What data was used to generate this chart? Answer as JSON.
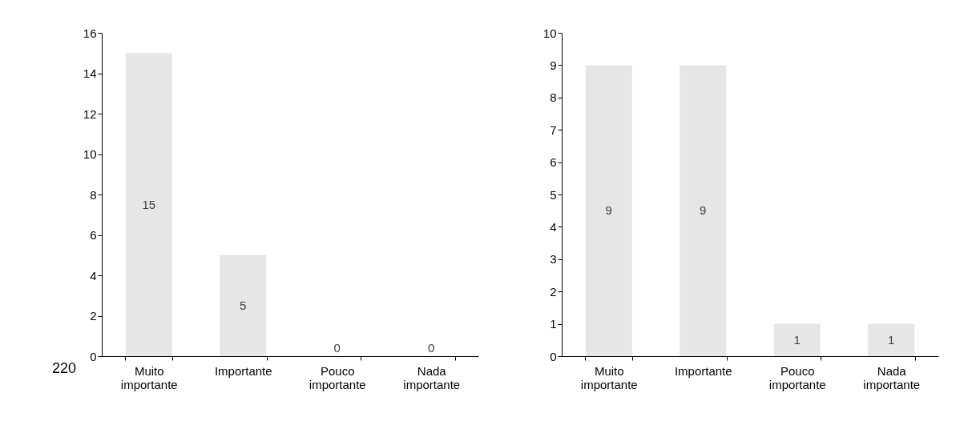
{
  "chart_data": [
    {
      "type": "bar",
      "categories": [
        "Muito importante",
        "Importante",
        "Pouco importante",
        "Nada importante"
      ],
      "values": [
        15,
        5,
        0,
        0
      ],
      "color": "#e7e6e6",
      "ylim": [
        0,
        16
      ],
      "yticks": [
        0,
        2,
        4,
        6,
        8,
        10,
        12,
        14,
        16
      ],
      "data_labels": true,
      "grid": false,
      "annotations": [
        "220"
      ]
    },
    {
      "type": "bar",
      "categories": [
        "Muito importante",
        "Importante",
        "Pouco importante",
        "Nada importante"
      ],
      "values": [
        9,
        9,
        1,
        1
      ],
      "color": "#e7e6e6",
      "ylim": [
        0,
        10
      ],
      "yticks": [
        0,
        1,
        2,
        3,
        4,
        5,
        6,
        7,
        8,
        9,
        10
      ],
      "data_labels": true,
      "grid": false
    }
  ]
}
